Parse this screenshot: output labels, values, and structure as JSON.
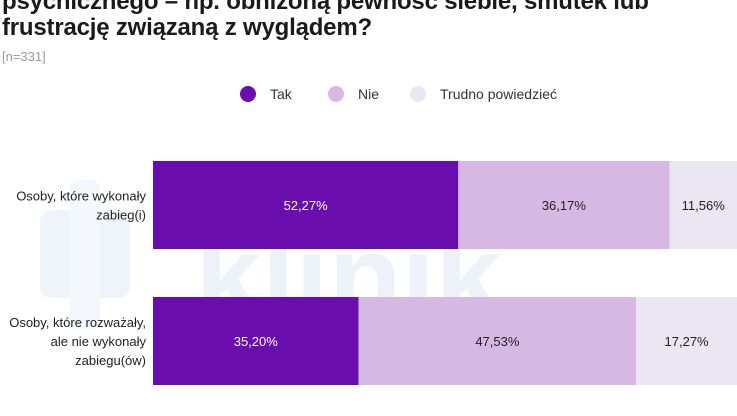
{
  "title": "psychicznego – np. obniżoną pewność siebie, smutek lub frustrację związaną z wyglądem?",
  "sample": "[n=331]",
  "watermark": "klinik",
  "colors": {
    "tak": "#6a0dad",
    "nie": "#d7b7e3",
    "trudno": "#eae6f2"
  },
  "chart_data": {
    "type": "bar",
    "orientation": "horizontal-stacked-100",
    "title": "psychicznego – np. obniżoną pewność siebie, smutek lub frustrację związaną z wyglądem?",
    "categories": [
      [
        "Osoby, które wykonały",
        "zabieg(i)"
      ],
      [
        "Osoby, które rozważały,",
        "ale nie wykonały",
        "zabiegu(ów)"
      ]
    ],
    "series": [
      {
        "name": "Tak",
        "values": [
          52.27,
          35.2
        ],
        "labels": [
          "52,27%",
          "35,20%"
        ]
      },
      {
        "name": "Nie",
        "values": [
          36.17,
          47.53
        ],
        "labels": [
          "36,17%",
          "47,53%"
        ]
      },
      {
        "name": "Trudno powiedzieć",
        "values": [
          11.56,
          17.27
        ],
        "labels": [
          "11,56%",
          "17,27%"
        ]
      }
    ],
    "xlim": [
      0,
      100
    ],
    "legend": "top-center",
    "grid": false
  }
}
